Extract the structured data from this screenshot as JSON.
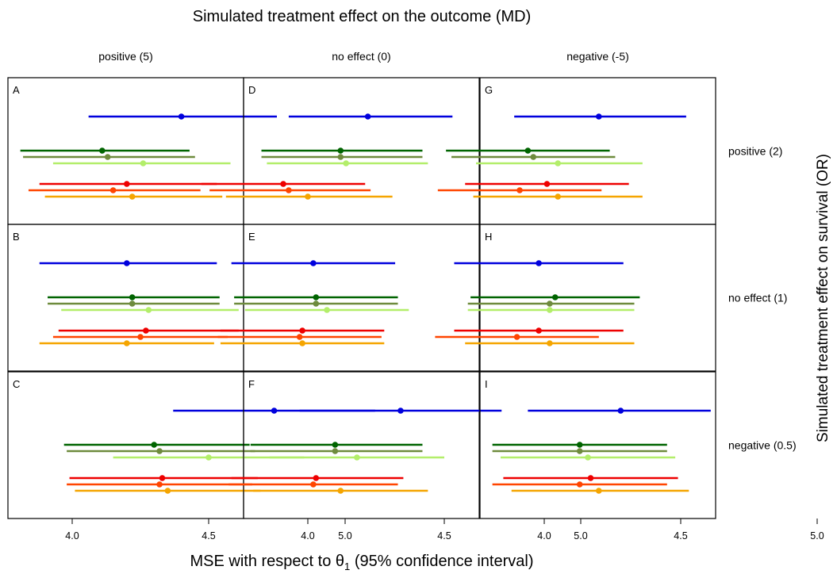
{
  "chart_data": {
    "type": "scatter",
    "title": "Simulated treatment effect on the outcome (MD)",
    "xlabel": "MSE with respect to θ",
    "xlabel_sub": "1",
    "xlabel_suffix": " (95% confidence interval)",
    "ylabel": "Simulated treatment effect on survival (OR)",
    "xlim": [
      3.5,
      5.25
    ],
    "xticks": [
      4.0,
      4.5,
      5.0
    ],
    "xtick_labels": [
      "4.0",
      "4.5",
      "5.0"
    ],
    "columns": [
      "positive (5)",
      "no effect (0)",
      "negative (-5)"
    ],
    "rows": [
      "positive (2)",
      "no effect (1)",
      "negative (0.5)"
    ],
    "series_colors": [
      "#0000dd",
      "#006400",
      "#6e8b3d",
      "#b3ee6a",
      "#ee0000",
      "#ff4500",
      "#f5a500"
    ],
    "panels": [
      {
        "letter": "A",
        "row": 0,
        "col": 0,
        "points": [
          {
            "est": 4.4,
            "lo": 4.06,
            "hi": 4.75
          },
          {
            "est": 4.11,
            "lo": 3.81,
            "hi": 4.43
          },
          {
            "est": 4.13,
            "lo": 3.82,
            "hi": 4.45
          },
          {
            "est": 4.26,
            "lo": 3.93,
            "hi": 4.58
          },
          {
            "est": 4.2,
            "lo": 3.88,
            "hi": 4.53
          },
          {
            "est": 4.15,
            "lo": 3.84,
            "hi": 4.47
          },
          {
            "est": 4.22,
            "lo": 3.9,
            "hi": 4.55
          }
        ]
      },
      {
        "letter": "D",
        "row": 0,
        "col": 1,
        "points": [
          {
            "est": 4.22,
            "lo": 3.93,
            "hi": 4.53
          },
          {
            "est": 4.12,
            "lo": 3.83,
            "hi": 4.42
          },
          {
            "est": 4.12,
            "lo": 3.83,
            "hi": 4.42
          },
          {
            "est": 4.14,
            "lo": 3.85,
            "hi": 4.44
          },
          {
            "est": 3.91,
            "lo": 3.61,
            "hi": 4.21
          },
          {
            "est": 3.93,
            "lo": 3.64,
            "hi": 4.23
          },
          {
            "est": 4.0,
            "lo": 3.7,
            "hi": 4.31
          }
        ]
      },
      {
        "letter": "G",
        "row": 0,
        "col": 2,
        "points": [
          {
            "est": 4.2,
            "lo": 3.89,
            "hi": 4.52
          },
          {
            "est": 3.94,
            "lo": 3.64,
            "hi": 4.24
          },
          {
            "est": 3.96,
            "lo": 3.66,
            "hi": 4.26
          },
          {
            "est": 4.05,
            "lo": 3.75,
            "hi": 4.36
          },
          {
            "est": 4.01,
            "lo": 3.71,
            "hi": 4.31
          },
          {
            "est": 3.91,
            "lo": 3.61,
            "hi": 4.21
          },
          {
            "est": 4.05,
            "lo": 3.74,
            "hi": 4.36
          }
        ]
      },
      {
        "letter": "B",
        "row": 1,
        "col": 0,
        "points": [
          {
            "est": 4.2,
            "lo": 3.88,
            "hi": 4.53
          },
          {
            "est": 4.22,
            "lo": 3.91,
            "hi": 4.54
          },
          {
            "est": 4.22,
            "lo": 3.91,
            "hi": 4.54
          },
          {
            "est": 4.28,
            "lo": 3.96,
            "hi": 4.61
          },
          {
            "est": 4.27,
            "lo": 3.95,
            "hi": 4.61
          },
          {
            "est": 4.25,
            "lo": 3.93,
            "hi": 4.57
          },
          {
            "est": 4.2,
            "lo": 3.88,
            "hi": 4.52
          }
        ]
      },
      {
        "letter": "E",
        "row": 1,
        "col": 1,
        "points": [
          {
            "est": 4.02,
            "lo": 3.72,
            "hi": 4.32
          },
          {
            "est": 4.03,
            "lo": 3.73,
            "hi": 4.33
          },
          {
            "est": 4.03,
            "lo": 3.73,
            "hi": 4.33
          },
          {
            "est": 4.07,
            "lo": 3.77,
            "hi": 4.37
          },
          {
            "est": 3.98,
            "lo": 3.68,
            "hi": 4.28
          },
          {
            "est": 3.97,
            "lo": 3.67,
            "hi": 4.27
          },
          {
            "est": 3.98,
            "lo": 3.68,
            "hi": 4.28
          }
        ]
      },
      {
        "letter": "H",
        "row": 1,
        "col": 2,
        "points": [
          {
            "est": 3.98,
            "lo": 3.67,
            "hi": 4.29
          },
          {
            "est": 4.04,
            "lo": 3.73,
            "hi": 4.35
          },
          {
            "est": 4.02,
            "lo": 3.72,
            "hi": 4.33
          },
          {
            "est": 4.02,
            "lo": 3.72,
            "hi": 4.33
          },
          {
            "est": 3.98,
            "lo": 3.67,
            "hi": 4.29
          },
          {
            "est": 3.9,
            "lo": 3.6,
            "hi": 4.2
          },
          {
            "est": 4.02,
            "lo": 3.71,
            "hi": 4.33
          }
        ]
      },
      {
        "letter": "C",
        "row": 2,
        "col": 0,
        "points": [
          {
            "est": 4.74,
            "lo": 4.37,
            "hi": 5.11
          },
          {
            "est": 4.3,
            "lo": 3.97,
            "hi": 4.65
          },
          {
            "est": 4.32,
            "lo": 3.98,
            "hi": 4.67
          },
          {
            "est": 4.5,
            "lo": 4.15,
            "hi": 4.85
          },
          {
            "est": 4.33,
            "lo": 3.99,
            "hi": 4.68
          },
          {
            "est": 4.32,
            "lo": 3.98,
            "hi": 4.66
          },
          {
            "est": 4.35,
            "lo": 4.01,
            "hi": 4.69
          }
        ]
      },
      {
        "letter": "F",
        "row": 2,
        "col": 1,
        "points": [
          {
            "est": 4.34,
            "lo": 3.97,
            "hi": 4.71
          },
          {
            "est": 4.1,
            "lo": 3.79,
            "hi": 4.42
          },
          {
            "est": 4.1,
            "lo": 3.79,
            "hi": 4.42
          },
          {
            "est": 4.18,
            "lo": 3.86,
            "hi": 4.5
          },
          {
            "est": 4.03,
            "lo": 3.72,
            "hi": 4.35
          },
          {
            "est": 4.02,
            "lo": 3.71,
            "hi": 4.33
          },
          {
            "est": 4.12,
            "lo": 3.8,
            "hi": 4.44
          }
        ]
      },
      {
        "letter": "I",
        "row": 2,
        "col": 2,
        "points": [
          {
            "est": 4.28,
            "lo": 3.94,
            "hi": 4.61
          },
          {
            "est": 4.13,
            "lo": 3.81,
            "hi": 4.45
          },
          {
            "est": 4.13,
            "lo": 3.81,
            "hi": 4.45
          },
          {
            "est": 4.16,
            "lo": 3.84,
            "hi": 4.48
          },
          {
            "est": 4.17,
            "lo": 3.85,
            "hi": 4.49
          },
          {
            "est": 4.13,
            "lo": 3.81,
            "hi": 4.45
          },
          {
            "est": 4.2,
            "lo": 3.88,
            "hi": 4.53
          }
        ]
      }
    ]
  }
}
